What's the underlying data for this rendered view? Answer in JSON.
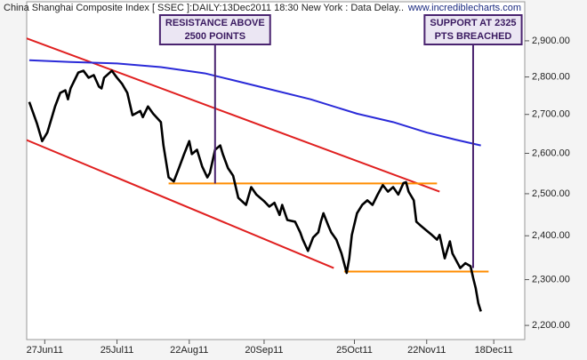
{
  "chart_data": {
    "type": "line",
    "title": "China Shanghai Composite Index [ SSEC ]:DAILY:13Dec2011 18:30 New York : Data Delay..",
    "watermark": "www.incrediblecharts.com",
    "ylog": true,
    "grid": false,
    "xlim": [
      "2011-06-20",
      "2011-12-30"
    ],
    "xticks": [
      {
        "value": "2011-06-27",
        "label": "27Jun11"
      },
      {
        "value": "2011-07-25",
        "label": "25Jul11"
      },
      {
        "value": "2011-08-22",
        "label": "22Aug11"
      },
      {
        "value": "2011-09-20",
        "label": "20Sep11"
      },
      {
        "value": "2011-10-25",
        "label": "25Oct11"
      },
      {
        "value": "2011-11-22",
        "label": "22Nov11"
      },
      {
        "value": "2011-12-18",
        "label": "18Dec11"
      }
    ],
    "ylim": [
      2170,
      3012
    ],
    "yticks": [
      {
        "value": 2200,
        "label": "2,200.00"
      },
      {
        "value": 2300,
        "label": "2,300.00"
      },
      {
        "value": 2400,
        "label": "2,400.00"
      },
      {
        "value": 2500,
        "label": "2,500.00"
      },
      {
        "value": 2600,
        "label": "2,600.00"
      },
      {
        "value": 2700,
        "label": "2,700.00"
      },
      {
        "value": 2800,
        "label": "2,800.00"
      },
      {
        "value": 2900,
        "label": "2,900.00"
      }
    ],
    "lines": [
      {
        "color": "#e02020",
        "x": [
          "2011-06-10",
          "2011-11-27"
        ],
        "y": [
          2934,
          2505
        ]
      },
      {
        "color": "#e02020",
        "x": [
          "2011-06-17",
          "2011-10-17"
        ],
        "y": [
          2642,
          2326
        ]
      },
      {
        "color": "#ff8c00",
        "x": [
          "2011-08-14",
          "2011-11-26"
        ],
        "y": [
          2525,
          2525
        ]
      },
      {
        "color": "#ff8c00",
        "x": [
          "2011-10-21",
          "2011-12-16"
        ],
        "y": [
          2318,
          2318
        ]
      }
    ],
    "series": [
      {
        "color": "#2a2ad8",
        "width": 2,
        "x": [
          "2011-06-21",
          "2011-07-07",
          "2011-07-25",
          "2011-08-11",
          "2011-08-28",
          "2011-09-07",
          "2011-09-21",
          "2011-10-08",
          "2011-10-26",
          "2011-11-09",
          "2011-11-22",
          "2011-12-03",
          "2011-12-13"
        ],
        "values": [
          2846,
          2841,
          2837,
          2827,
          2810,
          2793,
          2769,
          2740,
          2702,
          2680,
          2653,
          2635,
          2620
        ]
      },
      {
        "color": "#000000",
        "width": 2.6,
        "x": [
          "2011-06-21",
          "2011-06-24",
          "2011-06-26",
          "2011-06-28",
          "2011-06-30",
          "2011-07-01",
          "2011-07-03",
          "2011-07-05",
          "2011-07-06",
          "2011-07-07",
          "2011-07-10",
          "2011-07-12",
          "2011-07-14",
          "2011-07-16",
          "2011-07-18",
          "2011-07-19",
          "2011-07-20",
          "2011-07-23",
          "2011-07-25",
          "2011-07-27",
          "2011-07-29",
          "2011-07-31",
          "2011-08-03",
          "2011-08-04",
          "2011-08-06",
          "2011-08-08",
          "2011-08-11",
          "2011-08-12",
          "2011-08-14",
          "2011-08-16",
          "2011-08-18",
          "2011-08-20",
          "2011-08-22",
          "2011-08-23",
          "2011-08-25",
          "2011-08-27",
          "2011-08-29",
          "2011-08-30",
          "2011-09-01",
          "2011-09-03",
          "2011-09-04",
          "2011-09-06",
          "2011-09-08",
          "2011-09-10",
          "2011-09-13",
          "2011-09-15",
          "2011-09-17",
          "2011-09-20",
          "2011-09-22",
          "2011-09-24",
          "2011-09-26",
          "2011-09-27",
          "2011-09-29",
          "2011-10-02",
          "2011-10-04",
          "2011-10-05",
          "2011-10-07",
          "2011-10-09",
          "2011-10-11",
          "2011-10-12",
          "2011-10-13",
          "2011-10-15",
          "2011-10-16",
          "2011-10-18",
          "2011-10-20",
          "2011-10-22",
          "2011-10-23",
          "2011-10-24",
          "2011-10-26",
          "2011-10-28",
          "2011-10-30",
          "2011-11-01",
          "2011-11-03",
          "2011-11-05",
          "2011-11-07",
          "2011-11-09",
          "2011-11-11",
          "2011-11-13",
          "2011-11-14",
          "2011-11-15",
          "2011-11-17",
          "2011-11-18",
          "2011-11-20",
          "2011-11-22",
          "2011-11-24",
          "2011-11-26",
          "2011-11-27",
          "2011-11-29",
          "2011-12-01",
          "2011-12-02",
          "2011-12-04",
          "2011-12-05",
          "2011-12-07",
          "2011-12-09",
          "2011-12-10",
          "2011-12-11",
          "2011-12-12",
          "2011-12-13"
        ],
        "values": [
          2733,
          2676,
          2631,
          2653,
          2698,
          2721,
          2757,
          2764,
          2740,
          2769,
          2812,
          2817,
          2798,
          2805,
          2774,
          2769,
          2798,
          2817,
          2798,
          2781,
          2757,
          2698,
          2709,
          2693,
          2721,
          2702,
          2680,
          2620,
          2540,
          2530,
          2563,
          2598,
          2631,
          2598,
          2609,
          2567,
          2540,
          2551,
          2609,
          2620,
          2598,
          2563,
          2544,
          2490,
          2473,
          2516,
          2498,
          2482,
          2469,
          2478,
          2449,
          2473,
          2437,
          2433,
          2408,
          2391,
          2365,
          2396,
          2408,
          2433,
          2453,
          2422,
          2408,
          2391,
          2359,
          2315,
          2348,
          2402,
          2453,
          2473,
          2484,
          2473,
          2498,
          2521,
          2505,
          2516,
          2498,
          2526,
          2528,
          2505,
          2484,
          2433,
          2422,
          2412,
          2402,
          2391,
          2402,
          2348,
          2387,
          2359,
          2337,
          2326,
          2337,
          2330,
          2304,
          2281,
          2248,
          2230
        ]
      }
    ],
    "annotations": [
      {
        "text": [
          "RESISTANCE ABOVE",
          "2500 POINTS"
        ],
        "x": "2011-09-01",
        "y": 2525
      },
      {
        "text": [
          "SUPPORT AT 2325",
          "PTS BREACHED"
        ],
        "x": "2011-12-10",
        "y": 2326
      }
    ]
  }
}
